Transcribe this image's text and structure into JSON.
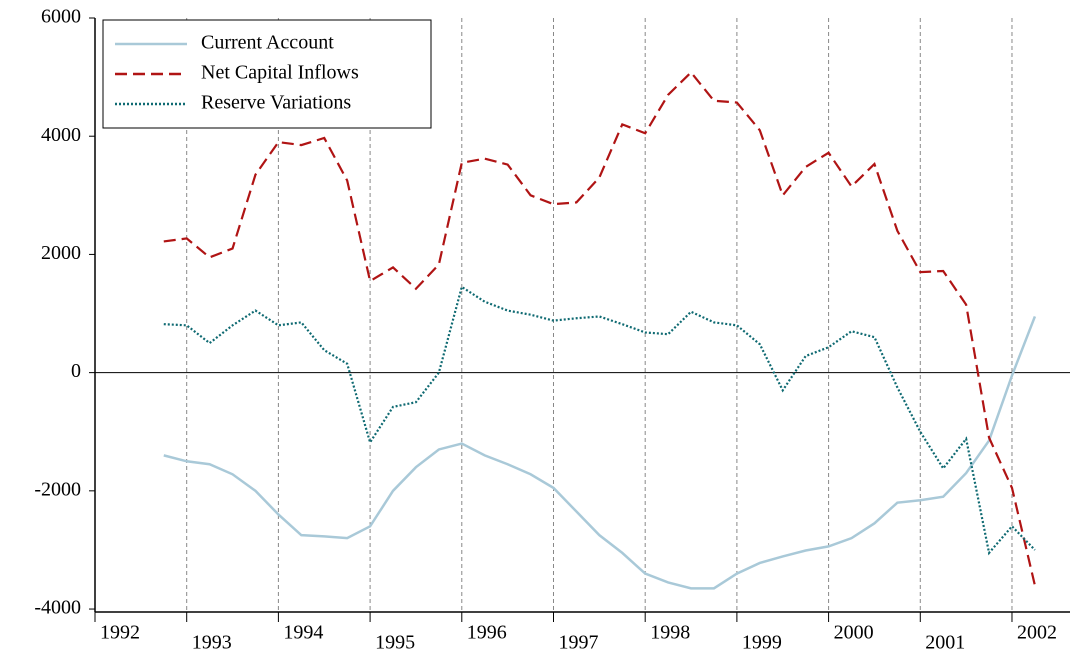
{
  "chart_data": {
    "type": "line",
    "x": [
      1992.75,
      1993.0,
      1993.25,
      1993.5,
      1993.75,
      1994.0,
      1994.25,
      1994.5,
      1994.75,
      1995.0,
      1995.25,
      1995.5,
      1995.75,
      1996.0,
      1996.25,
      1996.5,
      1996.75,
      1997.0,
      1997.25,
      1997.5,
      1997.75,
      1998.0,
      1998.25,
      1998.5,
      1998.75,
      1999.0,
      1999.25,
      1999.5,
      1999.75,
      2000.0,
      2000.25,
      2000.5,
      2000.75,
      2001.0,
      2001.25,
      2001.5,
      2001.75,
      2002.0,
      2002.25
    ],
    "series": [
      {
        "name": "Current Account",
        "color": "#a9c9d8",
        "dash": "solid",
        "values": [
          -1400,
          -1500,
          -1550,
          -1720,
          -2000,
          -2400,
          -2750,
          -2770,
          -2800,
          -2600,
          -2000,
          -1600,
          -1300,
          -1200,
          -1400,
          -1550,
          -1720,
          -1950,
          -2350,
          -2750,
          -3050,
          -3400,
          -3550,
          -3650,
          -3650,
          -3400,
          -3220,
          -3110,
          -3010,
          -2940,
          -2800,
          -2550,
          -2200,
          -2160,
          -2100,
          -1700,
          -1150,
          -50,
          950
        ]
      },
      {
        "name": "Net Capital Inflows",
        "color": "#b01414",
        "dash": "dashed",
        "values": [
          2220,
          2270,
          1950,
          2100,
          3350,
          3900,
          3850,
          3970,
          3250,
          1550,
          1780,
          1420,
          1830,
          3550,
          3620,
          3520,
          3000,
          2850,
          2880,
          3300,
          4200,
          4050,
          4700,
          5080,
          4600,
          4570,
          4100,
          3000,
          3480,
          3720,
          3150,
          3530,
          2400,
          1700,
          1720,
          1150,
          -1100,
          -1950,
          -3600
        ]
      },
      {
        "name": "Reserve Variations",
        "color": "#0f6a72",
        "dash": "dotted",
        "values": [
          820,
          800,
          500,
          800,
          1050,
          800,
          850,
          380,
          150,
          -1180,
          -580,
          -500,
          0,
          1450,
          1200,
          1050,
          980,
          880,
          920,
          950,
          820,
          680,
          650,
          1030,
          850,
          800,
          480,
          -300,
          280,
          430,
          700,
          600,
          -250,
          -1000,
          -1620,
          -1120,
          -3050,
          -2600,
          -3000
        ]
      }
    ],
    "xlim": [
      1992,
      2002.6
    ],
    "xticks": [
      1992,
      1993,
      1994,
      1995,
      1996,
      1997,
      1998,
      1999,
      2000,
      2001,
      2002
    ],
    "ylim": [
      -4050,
      6000
    ],
    "yticks": [
      -4000,
      -2000,
      0,
      2000,
      4000,
      6000
    ],
    "grid": "x",
    "zero_line": true,
    "legend": "upper left"
  }
}
